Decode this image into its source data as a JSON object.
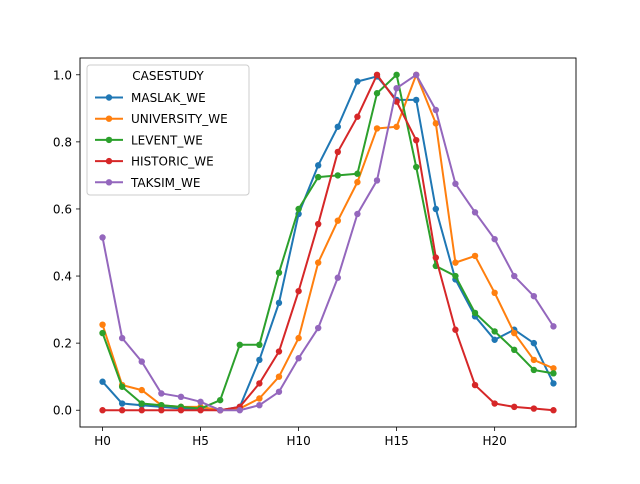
{
  "chart_data": {
    "type": "line",
    "x": [
      0,
      1,
      2,
      3,
      4,
      5,
      6,
      7,
      8,
      9,
      10,
      11,
      12,
      13,
      14,
      15,
      16,
      17,
      18,
      19,
      20,
      21,
      22,
      23
    ],
    "xticks": [
      {
        "x": 0,
        "label": "H0"
      },
      {
        "x": 5,
        "label": "H5"
      },
      {
        "x": 10,
        "label": "H10"
      },
      {
        "x": 15,
        "label": "H15"
      },
      {
        "x": 20,
        "label": "H20"
      }
    ],
    "yticks": [
      "0.0",
      "0.2",
      "0.4",
      "0.6",
      "0.8",
      "1.0"
    ],
    "xlim": [
      -1.15,
      24.15
    ],
    "ylim": [
      -0.05,
      1.05
    ],
    "grid": false,
    "legend": {
      "title": "CASESTUDY",
      "placement": "top-left"
    },
    "series": [
      {
        "name": "MASLAK_WE",
        "color": "#1f77b4",
        "values": [
          0.085,
          0.02,
          0.015,
          0.01,
          0.005,
          0.002,
          0.0,
          0.01,
          0.15,
          0.32,
          0.585,
          0.73,
          0.845,
          0.98,
          0.995,
          0.925,
          0.925,
          0.6,
          0.39,
          0.28,
          0.21,
          0.24,
          0.2,
          0.08
        ]
      },
      {
        "name": "UNIVERSITY_WE",
        "color": "#ff7f0e",
        "values": [
          0.255,
          0.075,
          0.06,
          0.015,
          0.01,
          0.01,
          0.0,
          0.005,
          0.035,
          0.1,
          0.215,
          0.44,
          0.565,
          0.68,
          0.84,
          0.845,
          1.0,
          0.855,
          0.44,
          0.46,
          0.35,
          0.23,
          0.15,
          0.125
        ]
      },
      {
        "name": "LEVENT_WE",
        "color": "#2ca02c",
        "values": [
          0.23,
          0.07,
          0.02,
          0.015,
          0.01,
          0.005,
          0.03,
          0.195,
          0.195,
          0.41,
          0.6,
          0.695,
          0.7,
          0.705,
          0.945,
          1.0,
          0.725,
          0.43,
          0.4,
          0.29,
          0.235,
          0.18,
          0.12,
          0.11
        ]
      },
      {
        "name": "HISTORIC_WE",
        "color": "#d62728",
        "values": [
          0.0,
          0.0,
          0.0,
          0.0,
          0.0,
          0.0,
          0.0,
          0.01,
          0.08,
          0.175,
          0.355,
          0.555,
          0.77,
          0.875,
          1.0,
          0.92,
          0.805,
          0.455,
          0.24,
          0.075,
          0.02,
          0.01,
          0.005,
          0.0
        ]
      },
      {
        "name": "TAKSIM_WE",
        "color": "#9467bd",
        "values": [
          0.515,
          0.215,
          0.145,
          0.05,
          0.04,
          0.025,
          0.0,
          0.0,
          0.015,
          0.055,
          0.155,
          0.245,
          0.395,
          0.585,
          0.685,
          0.96,
          1.0,
          0.895,
          0.675,
          0.59,
          0.51,
          0.4,
          0.34,
          0.25
        ]
      }
    ]
  }
}
